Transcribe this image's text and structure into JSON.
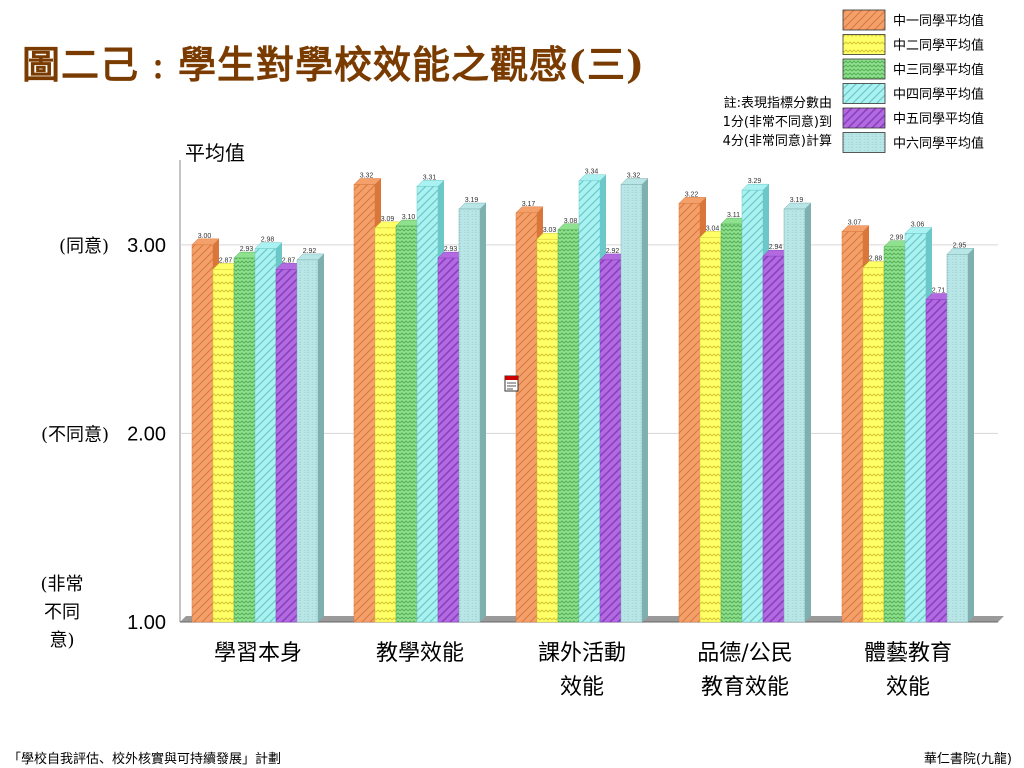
{
  "title": "圖二己﹕學生對學校效能之觀感(三)",
  "note": [
    "註:表現指標分數由",
    "1分(非常不同意)到",
    "4分(非常同意)計算"
  ],
  "footer": {
    "left": "「學校自我評估、校外核實與可持續發展」計劃",
    "right": "華仁書院(九龍)"
  },
  "colors": {
    "title": "#7a3b00",
    "series": [
      "#f4a06a",
      "#ffff66",
      "#8fe08f",
      "#aaf2f2",
      "#b36ae0",
      "#b8e6e6"
    ],
    "series_dark": [
      "#d9763a",
      "#d6c838",
      "#55b055",
      "#6cc8c8",
      "#8840c0",
      "#7fb0b0"
    ]
  },
  "icons": {
    "embedded_object": "document-icon"
  },
  "chart_data": {
    "type": "bar",
    "ylabel": "平均值",
    "ylim": [
      1.0,
      3.45
    ],
    "yticks": [
      {
        "value": 3.0,
        "label": "3.00",
        "desc": "(同意)"
      },
      {
        "value": 2.0,
        "label": "2.00",
        "desc": "(不同意)"
      },
      {
        "value": 1.0,
        "label": "1.00",
        "desc": "(非常不同意)"
      }
    ],
    "grid": true,
    "legend": "top-right",
    "categories": [
      [
        "學習本身"
      ],
      [
        "教學效能"
      ],
      [
        "課外活動",
        "效能"
      ],
      [
        "品德/公民",
        "教育效能"
      ],
      [
        "體藝教育",
        "效能"
      ]
    ],
    "series": [
      {
        "name": "中一同學平均值",
        "values": [
          3.0,
          3.32,
          3.17,
          3.22,
          3.07
        ]
      },
      {
        "name": "中二同學平均值",
        "values": [
          2.87,
          3.09,
          3.03,
          3.04,
          2.88
        ]
      },
      {
        "name": "中三同學平均值",
        "values": [
          2.93,
          3.1,
          3.08,
          3.11,
          2.99
        ]
      },
      {
        "name": "中四同學平均值",
        "values": [
          2.98,
          3.31,
          3.34,
          3.29,
          3.06
        ]
      },
      {
        "name": "中五同學平均值",
        "values": [
          2.87,
          2.93,
          2.92,
          2.94,
          2.71
        ]
      },
      {
        "name": "中六同學平均值",
        "values": [
          2.92,
          3.19,
          3.32,
          3.19,
          2.95
        ]
      }
    ]
  }
}
